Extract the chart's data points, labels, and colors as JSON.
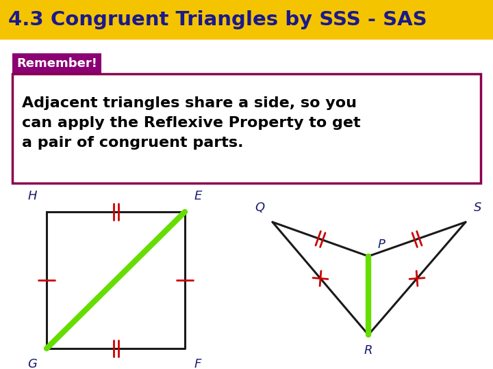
{
  "title": "4.3 Congruent Triangles by SSS - SAS",
  "title_bg": "#F5C400",
  "title_color": "#1a1a8c",
  "remember_text": "Remember!",
  "remember_bg": "#8B0073",
  "remember_text_color": "#ffffff",
  "body_text": "Adjacent triangles share a side, so you\ncan apply the Reflexive Property to get\na pair of congruent parts.",
  "body_border": "#8B0050",
  "bg_color": "#ffffff",
  "green_color": "#66DD00",
  "line_color": "#1a1a1a",
  "red_color": "#cc0000",
  "label_color": "#1a1a6e",
  "title_fontsize": 21,
  "body_fontsize": 16,
  "remember_fontsize": 13,
  "label_fontsize": 13
}
